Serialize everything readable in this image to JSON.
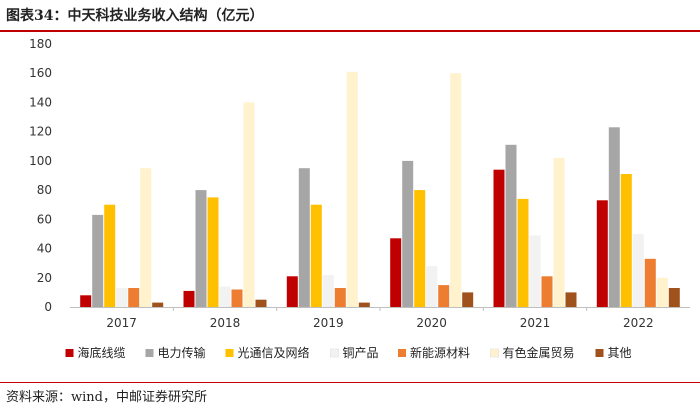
{
  "header": {
    "title": "图表34：中天科技业务收入结构（亿元）"
  },
  "footer": {
    "source": "资料来源：wind，中邮证券研究所"
  },
  "colors": {
    "accent_rule": "#c00000"
  },
  "chart_data": {
    "type": "bar",
    "title": "图表34：中天科技业务收入结构（亿元）",
    "xlabel": "",
    "ylabel": "",
    "categories": [
      "2017",
      "2018",
      "2019",
      "2020",
      "2021",
      "2022"
    ],
    "ylim": [
      0,
      180
    ],
    "yticks": [
      0,
      20,
      40,
      60,
      80,
      100,
      120,
      140,
      160,
      180
    ],
    "grid": false,
    "legend_position": "bottom",
    "series": [
      {
        "name": "海底线缆",
        "color": "#c00000",
        "values": [
          8,
          11,
          21,
          47,
          94,
          73
        ]
      },
      {
        "name": "电力传输",
        "color": "#a6a6a6",
        "values": [
          63,
          80,
          95,
          100,
          111,
          123
        ]
      },
      {
        "name": "光通信及网络",
        "color": "#ffc000",
        "values": [
          70,
          75,
          70,
          80,
          74,
          91
        ]
      },
      {
        "name": "铜产品",
        "color": "#f2f2f2",
        "values": [
          13,
          14,
          22,
          28,
          49,
          50
        ]
      },
      {
        "name": "新能源材料",
        "color": "#ed7d31",
        "values": [
          13,
          12,
          13,
          15,
          21,
          33
        ]
      },
      {
        "name": "有色金属贸易",
        "color": "#fff2cc",
        "values": [
          95,
          140,
          161,
          160,
          102,
          20
        ]
      },
      {
        "name": "其他",
        "color": "#a0521d",
        "values": [
          3,
          5,
          3,
          10,
          10,
          13
        ]
      }
    ]
  }
}
